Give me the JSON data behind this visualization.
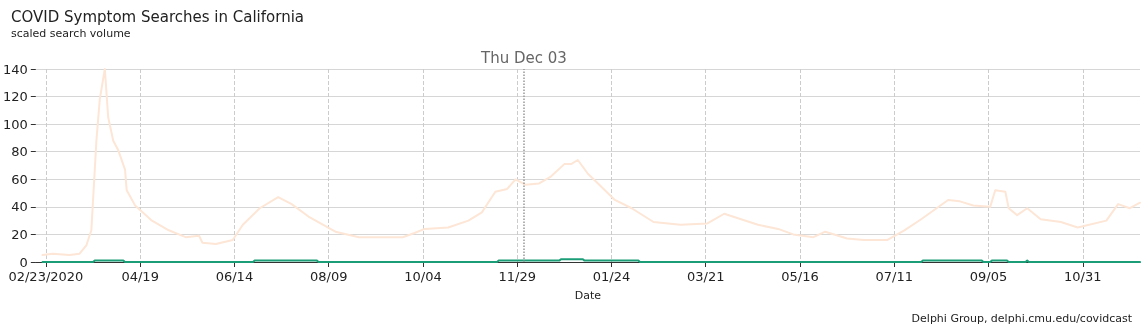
{
  "chart_data": {
    "type": "line",
    "title": "COVID Symptom Searches in California",
    "subtitle": "scaled search volume",
    "xlabel": "Date",
    "annotations": [
      "Delphi Group, delphi.cmu.edu/covidcast"
    ],
    "xlim": [
      "2020-02-17",
      "2021-12-04"
    ],
    "xticks": [
      {
        "value": "2020-02-23",
        "label": "02/23/2020"
      },
      {
        "value": "2020-04-19",
        "label": "04/19"
      },
      {
        "value": "2020-06-14",
        "label": "06/14"
      },
      {
        "value": "2020-08-09",
        "label": "08/09"
      },
      {
        "value": "2020-10-04",
        "label": "10/04"
      },
      {
        "value": "2020-11-29",
        "label": "11/29"
      },
      {
        "value": "2021-01-24",
        "label": "01/24"
      },
      {
        "value": "2021-03-21",
        "label": "03/21"
      },
      {
        "value": "2021-05-16",
        "label": "05/16"
      },
      {
        "value": "2021-07-11",
        "label": "07/11"
      },
      {
        "value": "2021-09-05",
        "label": "09/05"
      },
      {
        "value": "2021-10-31",
        "label": "10/31"
      }
    ],
    "ylim": [
      0,
      140
    ],
    "yticks": [
      0,
      20,
      40,
      60,
      80,
      100,
      120,
      140
    ],
    "grid": true,
    "marker": "none",
    "ref_lines": [
      {
        "axis": "x",
        "value": "2020-12-03",
        "label": "Thu Dec 03",
        "color": "#999999",
        "line_style": "dotted"
      }
    ],
    "series": [
      {
        "color": "#fde6d6",
        "x": [
          "2020-02-21",
          "2020-02-27",
          "2020-03-08",
          "2020-03-14",
          "2020-03-18",
          "2020-03-21",
          "2020-03-24",
          "2020-03-26",
          "2020-03-29",
          "2020-03-31",
          "2020-04-03",
          "2020-04-06",
          "2020-04-10",
          "2020-04-11",
          "2020-04-16",
          "2020-04-26",
          "2020-05-06",
          "2020-05-16",
          "2020-05-24",
          "2020-05-26",
          "2020-06-03",
          "2020-06-13",
          "2020-06-19",
          "2020-06-29",
          "2020-07-10",
          "2020-07-18",
          "2020-07-28",
          "2020-08-13",
          "2020-08-27",
          "2020-09-10",
          "2020-09-22",
          "2020-09-29",
          "2020-10-05",
          "2020-10-19",
          "2020-10-31",
          "2020-11-08",
          "2020-11-16",
          "2020-11-23",
          "2020-11-28",
          "2020-12-04",
          "2020-12-12",
          "2020-12-19",
          "2020-12-27",
          "2020-12-31",
          "2021-01-04",
          "2021-01-10",
          "2021-01-16",
          "2021-01-26",
          "2021-02-05",
          "2021-02-18",
          "2021-03-06",
          "2021-03-22",
          "2021-04-01",
          "2021-04-11",
          "2021-04-21",
          "2021-05-03",
          "2021-05-12",
          "2021-05-24",
          "2021-05-31",
          "2021-06-13",
          "2021-06-23",
          "2021-07-07",
          "2021-07-17",
          "2021-07-27",
          "2021-08-12",
          "2021-08-19",
          "2021-08-27",
          "2021-09-06",
          "2021-09-09",
          "2021-09-15",
          "2021-09-17",
          "2021-09-22",
          "2021-09-28",
          "2021-10-06",
          "2021-10-18",
          "2021-10-28",
          "2021-11-14",
          "2021-11-21",
          "2021-11-28",
          "2021-12-04"
        ],
        "values": [
          5,
          6,
          5,
          6,
          12,
          23,
          88,
          118,
          140,
          105,
          88,
          81,
          67,
          52,
          41,
          30,
          23,
          18,
          19,
          14,
          13,
          16,
          27,
          39,
          47,
          42,
          33,
          22,
          18,
          18,
          18,
          21,
          24,
          25,
          30,
          36,
          51,
          53,
          60,
          56,
          57,
          62,
          71,
          71,
          74,
          64,
          57,
          45,
          39,
          29,
          27,
          28,
          35,
          31,
          27,
          24,
          20,
          18,
          22,
          17,
          16,
          16,
          23,
          31,
          45,
          44,
          41,
          40,
          52,
          51,
          39,
          34,
          39,
          31,
          29,
          25,
          30,
          42,
          39,
          43
        ]
      },
      {
        "color": "#1b9e77",
        "x": [
          "2020-02-21",
          "2020-03-22",
          "2020-03-23",
          "2020-04-09",
          "2020-04-10",
          "2020-06-25",
          "2020-06-26",
          "2020-08-02",
          "2020-08-03",
          "2020-11-17",
          "2020-11-18",
          "2020-12-24",
          "2020-12-25",
          "2021-01-07",
          "2021-01-08",
          "2021-02-09",
          "2021-02-10",
          "2021-07-27",
          "2021-07-28",
          "2021-09-01",
          "2021-09-02",
          "2021-09-06",
          "2021-09-07",
          "2021-09-16",
          "2021-09-17",
          "2021-09-27",
          "2021-09-28",
          "2021-09-29",
          "2021-12-04"
        ],
        "values": [
          0,
          0,
          1,
          1,
          0,
          0,
          1,
          1,
          0,
          0,
          1,
          1,
          2,
          2,
          1,
          1,
          0,
          0,
          1,
          1,
          0,
          0,
          1,
          1,
          0,
          0,
          1,
          0,
          0
        ]
      }
    ]
  }
}
